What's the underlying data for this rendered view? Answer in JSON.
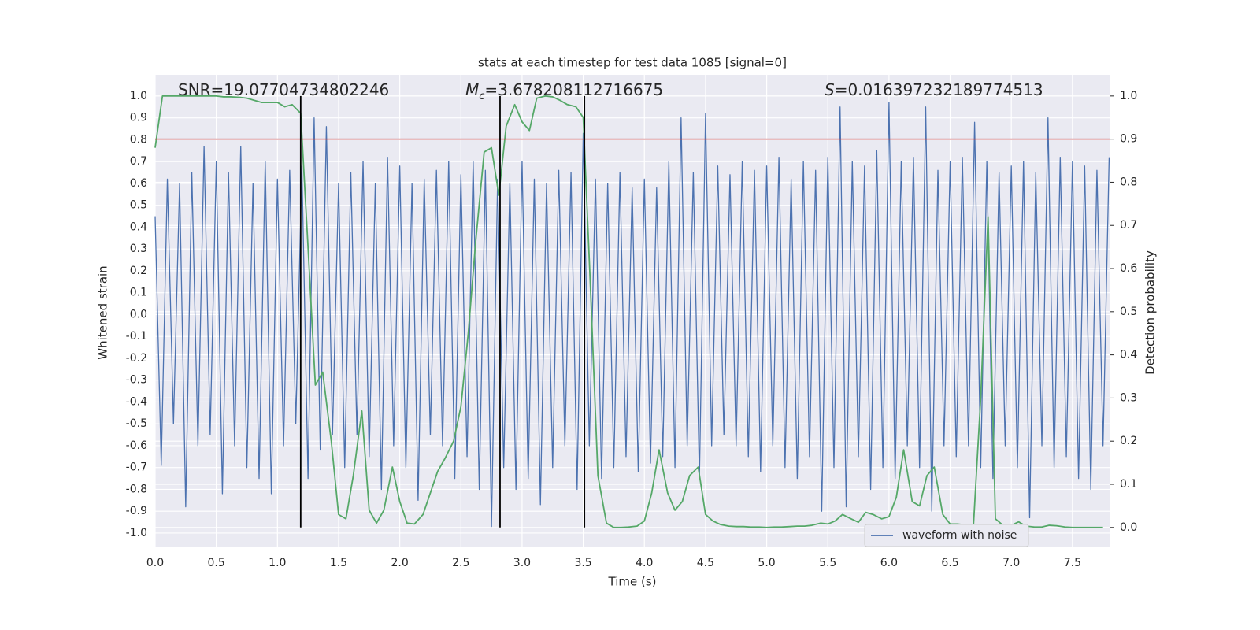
{
  "chart_data": {
    "type": "line",
    "title": "stats at each timestep for test data 1085 [signal=0]",
    "x_label": "Time (s)",
    "y_label": "Whitened strain",
    "y2_label": "Detection probability",
    "xlim": [
      0,
      7.81
    ],
    "ylim": [
      -1.065,
      1.097
    ],
    "y2lim": [
      -0.046,
      1.049
    ],
    "xticks": [
      {
        "value": 0,
        "label": "0.0"
      },
      0.5,
      {
        "value": 1,
        "label": "1.0"
      },
      1.5,
      {
        "value": 2,
        "label": "2.0"
      },
      2.5,
      {
        "value": 3,
        "label": "3.0"
      },
      3.5,
      {
        "value": 4,
        "label": "4.0"
      },
      4.5,
      {
        "value": 5,
        "label": "5.0"
      },
      5.5,
      {
        "value": 6,
        "label": "6.0"
      },
      6.5,
      {
        "value": 7,
        "label": "7.0"
      },
      7.5
    ],
    "yticks": [
      {
        "value": -1,
        "label": "-1.0"
      },
      -0.9,
      -0.8,
      -0.7,
      -0.6,
      -0.5,
      -0.4,
      -0.3,
      -0.2,
      -0.1,
      {
        "value": 0,
        "label": "0.0"
      },
      0.1,
      0.2,
      0.3,
      0.4,
      0.5,
      0.6,
      0.7,
      0.8,
      0.9,
      {
        "value": 1,
        "label": "1.0"
      }
    ],
    "y2ticks": [
      {
        "value": 0,
        "label": "0.0"
      },
      0.1,
      0.2,
      0.3,
      0.4,
      0.5,
      0.6,
      0.7,
      0.8,
      0.9,
      {
        "value": 1,
        "label": "1.0"
      }
    ],
    "grid": true,
    "legend": "lower right",
    "series": [
      {
        "name": "waveform with noise",
        "color": "#4c72b0",
        "x": [
          0,
          0.05,
          0.1,
          0.15,
          0.2,
          0.25,
          0.3,
          0.35,
          0.4,
          0.45,
          0.5,
          0.55,
          0.6,
          0.65,
          0.7,
          0.75,
          0.8,
          0.85,
          0.9,
          0.95,
          1,
          1.05,
          1.1,
          1.15,
          1.2,
          1.25,
          1.3,
          1.35,
          1.4,
          1.45,
          1.5,
          1.55,
          1.6,
          1.65,
          1.7,
          1.75,
          1.8,
          1.85,
          1.9,
          1.95,
          2,
          2.05,
          2.1,
          2.15,
          2.2,
          2.25,
          2.3,
          2.35,
          2.4,
          2.45,
          2.5,
          2.55,
          2.6,
          2.65,
          2.7,
          2.75,
          2.8,
          2.85,
          2.9,
          2.95,
          3,
          3.05,
          3.1,
          3.15,
          3.2,
          3.25,
          3.3,
          3.35,
          3.4,
          3.45,
          3.5,
          3.55,
          3.6,
          3.65,
          3.7,
          3.75,
          3.8,
          3.85,
          3.9,
          3.95,
          4,
          4.05,
          4.1,
          4.15,
          4.2,
          4.25,
          4.3,
          4.35,
          4.4,
          4.45,
          4.5,
          4.55,
          4.6,
          4.65,
          4.7,
          4.75,
          4.8,
          4.85,
          4.9,
          4.95,
          5,
          5.05,
          5.1,
          5.15,
          5.2,
          5.25,
          5.3,
          5.35,
          5.4,
          5.45,
          5.5,
          5.55,
          5.6,
          5.65,
          5.7,
          5.75,
          5.8,
          5.85,
          5.9,
          5.95,
          6,
          6.05,
          6.1,
          6.15,
          6.2,
          6.25,
          6.3,
          6.35,
          6.4,
          6.45,
          6.5,
          6.55,
          6.6,
          6.65,
          6.7,
          6.75,
          6.8,
          6.85,
          6.9,
          6.95,
          7,
          7.05,
          7.1,
          7.15,
          7.2,
          7.25,
          7.3,
          7.35,
          7.4,
          7.45,
          7.5,
          7.55,
          7.6,
          7.65,
          7.7,
          7.75,
          7.8
        ],
        "values": [
          0.45,
          -0.69,
          0.62,
          -0.5,
          0.6,
          -0.88,
          0.65,
          -0.6,
          0.77,
          -0.55,
          0.7,
          -0.82,
          0.65,
          -0.6,
          0.77,
          -0.7,
          0.6,
          -0.75,
          0.7,
          -0.82,
          0.62,
          -0.6,
          0.66,
          -0.5,
          0.68,
          -0.75,
          0.9,
          -0.62,
          0.86,
          -0.55,
          0.6,
          -0.7,
          0.65,
          -0.55,
          0.7,
          -0.65,
          0.6,
          -0.8,
          0.72,
          -0.6,
          0.68,
          -0.7,
          0.6,
          -0.85,
          0.62,
          -0.55,
          0.66,
          -0.6,
          0.7,
          -0.75,
          0.64,
          -0.65,
          0.7,
          -0.8,
          0.66,
          -0.97,
          0.62,
          -0.7,
          0.6,
          -0.8,
          0.7,
          -0.75,
          0.62,
          -0.87,
          0.6,
          -0.7,
          0.66,
          -0.6,
          0.65,
          -0.8,
          0.83,
          -0.6,
          0.62,
          -0.75,
          0.6,
          -0.7,
          0.65,
          -0.65,
          0.58,
          -0.72,
          0.62,
          -0.68,
          0.58,
          -0.65,
          0.7,
          -0.7,
          0.9,
          -0.6,
          0.65,
          -0.75,
          0.92,
          -0.6,
          0.68,
          -0.55,
          0.64,
          -0.6,
          0.7,
          -0.65,
          0.66,
          -0.72,
          0.68,
          -0.6,
          0.72,
          -0.7,
          0.62,
          -0.75,
          0.7,
          -0.65,
          0.66,
          -0.9,
          0.72,
          -0.7,
          0.95,
          -0.88,
          0.7,
          -0.65,
          0.68,
          -0.8,
          0.75,
          -0.7,
          0.97,
          -0.75,
          0.7,
          -0.6,
          0.72,
          -0.7,
          0.95,
          -0.9,
          0.66,
          -0.6,
          0.7,
          -0.65,
          0.72,
          -0.6,
          0.88,
          -0.7,
          0.7,
          -0.75,
          0.65,
          -0.6,
          0.68,
          -0.7,
          0.7,
          -0.93,
          0.65,
          -0.6,
          0.9,
          -0.7,
          0.72,
          -0.65,
          0.7,
          -0.75,
          0.68,
          -0.8,
          0.66,
          -0.6,
          0.72
        ]
      },
      {
        "color": "#55a868",
        "axis": "y2",
        "x": [
          0,
          0.06,
          0.12,
          0.19,
          0.25,
          0.31,
          0.37,
          0.44,
          0.5,
          0.56,
          0.62,
          0.69,
          0.75,
          0.81,
          0.87,
          0.94,
          1.0,
          1.06,
          1.12,
          1.19,
          1.25,
          1.31,
          1.37,
          1.44,
          1.5,
          1.56,
          1.62,
          1.69,
          1.75,
          1.81,
          1.87,
          1.94,
          2.0,
          2.06,
          2.12,
          2.19,
          2.25,
          2.31,
          2.37,
          2.44,
          2.5,
          2.56,
          2.62,
          2.69,
          2.75,
          2.81,
          2.87,
          2.94,
          3.0,
          3.06,
          3.12,
          3.19,
          3.25,
          3.31,
          3.37,
          3.44,
          3.5,
          3.56,
          3.62,
          3.69,
          3.75,
          3.81,
          3.87,
          3.94,
          4.0,
          4.06,
          4.12,
          4.19,
          4.25,
          4.31,
          4.37,
          4.44,
          4.5,
          4.56,
          4.62,
          4.69,
          4.75,
          4.81,
          4.87,
          4.94,
          5.0,
          5.06,
          5.12,
          5.19,
          5.25,
          5.31,
          5.37,
          5.44,
          5.5,
          5.56,
          5.62,
          5.69,
          5.75,
          5.81,
          5.87,
          5.94,
          6.0,
          6.06,
          6.12,
          6.19,
          6.25,
          6.31,
          6.37,
          6.44,
          6.5,
          6.56,
          6.62,
          6.69,
          6.75,
          6.81,
          6.87,
          6.94,
          7.0,
          7.06,
          7.12,
          7.19,
          7.25,
          7.31,
          7.37,
          7.44,
          7.5,
          7.56,
          7.62,
          7.69,
          7.75
        ],
        "values": [
          0.88,
          1.0,
          1.0,
          1.0,
          1.0,
          1.0,
          1.0,
          1.0,
          1.0,
          0.998,
          0.998,
          0.997,
          0.995,
          0.99,
          0.985,
          0.985,
          0.985,
          0.975,
          0.98,
          0.96,
          0.65,
          0.33,
          0.36,
          0.2,
          0.03,
          0.02,
          0.12,
          0.27,
          0.04,
          0.01,
          0.04,
          0.14,
          0.06,
          0.01,
          0.008,
          0.03,
          0.08,
          0.13,
          0.16,
          0.2,
          0.28,
          0.45,
          0.66,
          0.87,
          0.88,
          0.77,
          0.93,
          0.98,
          0.94,
          0.92,
          0.995,
          1.0,
          0.998,
          0.99,
          0.98,
          0.975,
          0.95,
          0.55,
          0.12,
          0.01,
          0.0,
          0.0,
          0.001,
          0.003,
          0.015,
          0.08,
          0.18,
          0.08,
          0.04,
          0.06,
          0.12,
          0.14,
          0.03,
          0.015,
          0.007,
          0.003,
          0.002,
          0.002,
          0.001,
          0.001,
          0.0,
          0.001,
          0.001,
          0.002,
          0.003,
          0.003,
          0.005,
          0.01,
          0.008,
          0.015,
          0.03,
          0.02,
          0.012,
          0.035,
          0.03,
          0.02,
          0.025,
          0.07,
          0.18,
          0.06,
          0.05,
          0.12,
          0.14,
          0.03,
          0.008,
          0.008,
          0.006,
          0.002,
          0.3,
          0.72,
          0.02,
          0.003,
          0.005,
          0.013,
          0.003,
          0.001,
          0.001,
          0.005,
          0.004,
          0.001,
          0.0,
          0.0,
          0.0,
          0.0,
          0.0
        ]
      }
    ],
    "hlines": [
      {
        "value": 0.9,
        "axis": "y2",
        "color": "#c44e52"
      }
    ],
    "vlines": {
      "x": [
        1.19,
        2.82,
        3.51
      ],
      "ymin": 0,
      "ymax": 1,
      "axis": "y2",
      "color": "#000000"
    },
    "annotations": [
      {
        "text": "SNR=19.07704734802246"
      },
      {
        "symbol": "M",
        "subscript": "c",
        "text": "=3.678208112716675"
      },
      {
        "symbol": "S",
        "text": "=0.016397232189774513"
      }
    ]
  }
}
